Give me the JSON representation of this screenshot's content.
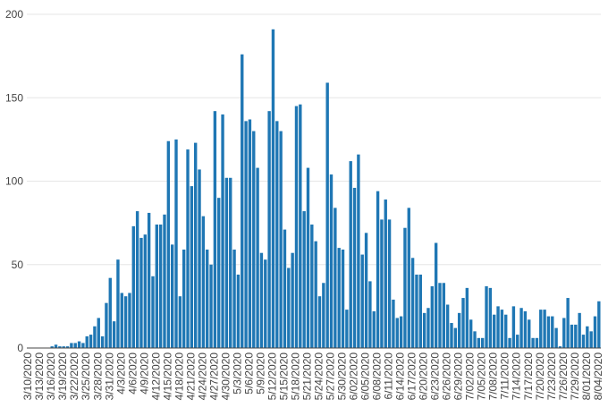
{
  "colors": {
    "bar": "#1f77b4",
    "grid": "#e6e6e6",
    "axis": "#444444"
  },
  "chart_data": {
    "type": "bar",
    "title": "",
    "xlabel": "",
    "ylabel": "",
    "ylim": [
      0,
      200
    ],
    "yticks": [
      0,
      50,
      100,
      150,
      200
    ],
    "grid": true,
    "x_start": "3/10/2020",
    "x_tick_labels": [
      "3/10/2020",
      "3/13/2020",
      "3/16/2020",
      "3/19/2020",
      "3/22/2020",
      "3/25/2020",
      "3/28/2020",
      "3/31/2020",
      "4/3/2020",
      "4/6/2020",
      "4/9/2020",
      "4/12/2020",
      "4/15/2020",
      "4/18/2020",
      "4/21/2020",
      "4/24/2020",
      "4/27/2020",
      "4/30/2020",
      "5/3/2020",
      "5/6/2020",
      "5/9/2020",
      "5/12/2020",
      "5/15/2020",
      "5/18/2020",
      "5/21/2020",
      "5/24/2020",
      "5/27/2020",
      "5/30/2020",
      "6/02/2020",
      "6/05/2020",
      "6/08/2020",
      "6/11/2020",
      "6/14/2020",
      "6/17/2020",
      "6/20/2020",
      "6/23/2020",
      "6/26/2020",
      "6/29/2020",
      "7/02/2020",
      "7/05/2020",
      "7/08/2020",
      "7/11/2020",
      "7/14/2020",
      "7/17/2020",
      "7/20/2020",
      "7/23/2020",
      "7/26/2020",
      "7/29/2020",
      "8/01/2020",
      "8/04/2020"
    ],
    "values": [
      0,
      0,
      0,
      0,
      0,
      0,
      1,
      2,
      1,
      1,
      1,
      3,
      3,
      4,
      3,
      7,
      8,
      13,
      18,
      7,
      27,
      42,
      16,
      53,
      33,
      31,
      33,
      73,
      82,
      66,
      68,
      81,
      43,
      74,
      74,
      80,
      124,
      62,
      125,
      31,
      59,
      119,
      97,
      123,
      107,
      79,
      59,
      50,
      142,
      90,
      140,
      102,
      102,
      59,
      44,
      176,
      136,
      137,
      130,
      108,
      57,
      53,
      142,
      191,
      136,
      130,
      71,
      48,
      57,
      145,
      146,
      82,
      108,
      74,
      64,
      31,
      39,
      159,
      104,
      84,
      60,
      59,
      23,
      112,
      96,
      116,
      56,
      69,
      40,
      22,
      94,
      77,
      89,
      77,
      29,
      18,
      19,
      72,
      84,
      54,
      44,
      44,
      21,
      24,
      37,
      63,
      39,
      39,
      26,
      15,
      12,
      21,
      30,
      36,
      17,
      10,
      6,
      6,
      37,
      36,
      20,
      25,
      23,
      20,
      6,
      25,
      8,
      24,
      22,
      17,
      6,
      6,
      23,
      23,
      19,
      19,
      12,
      1,
      18,
      30,
      14,
      14,
      21,
      8,
      13,
      10,
      19,
      28
    ]
  }
}
